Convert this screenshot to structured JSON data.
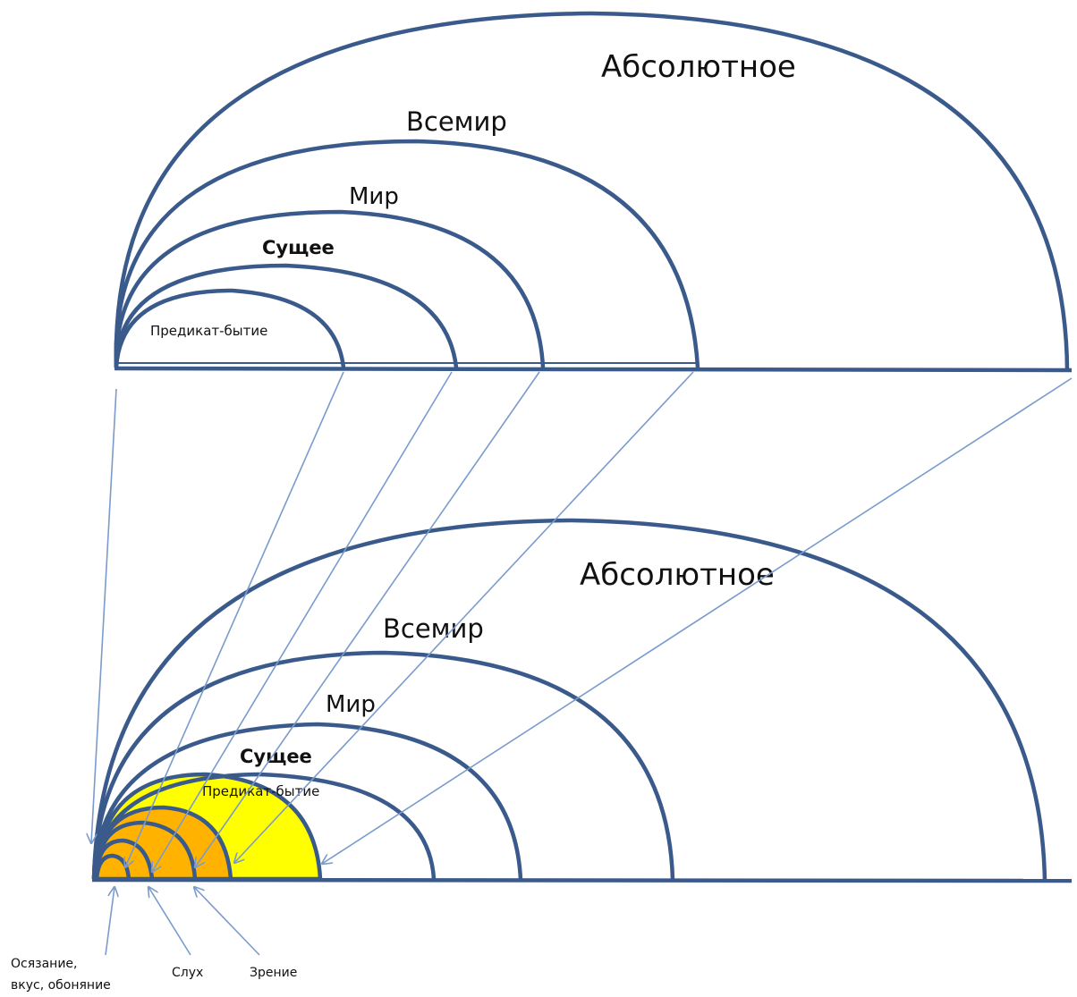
{
  "colors": {
    "stroke": "#3a5a8c",
    "connector": "#7a9bcc",
    "predicate_fill": "#ffff00",
    "sense_fill": "#ffb300"
  },
  "top_diagram": {
    "absolute": "Абсолютное",
    "universe": "Всемир",
    "world": "Мир",
    "being": "Сущее",
    "predicate": "Предикат-бытие"
  },
  "bottom_diagram": {
    "absolute": "Абсолютное",
    "universe": "Всемир",
    "world": "Мир",
    "being": "Сущее",
    "predicate": "Предикат-бытие"
  },
  "senses": {
    "touch_line1": "Осязание,",
    "touch_line2": "вкус, обоняние",
    "hearing": "Слух",
    "vision": "Зрение"
  }
}
